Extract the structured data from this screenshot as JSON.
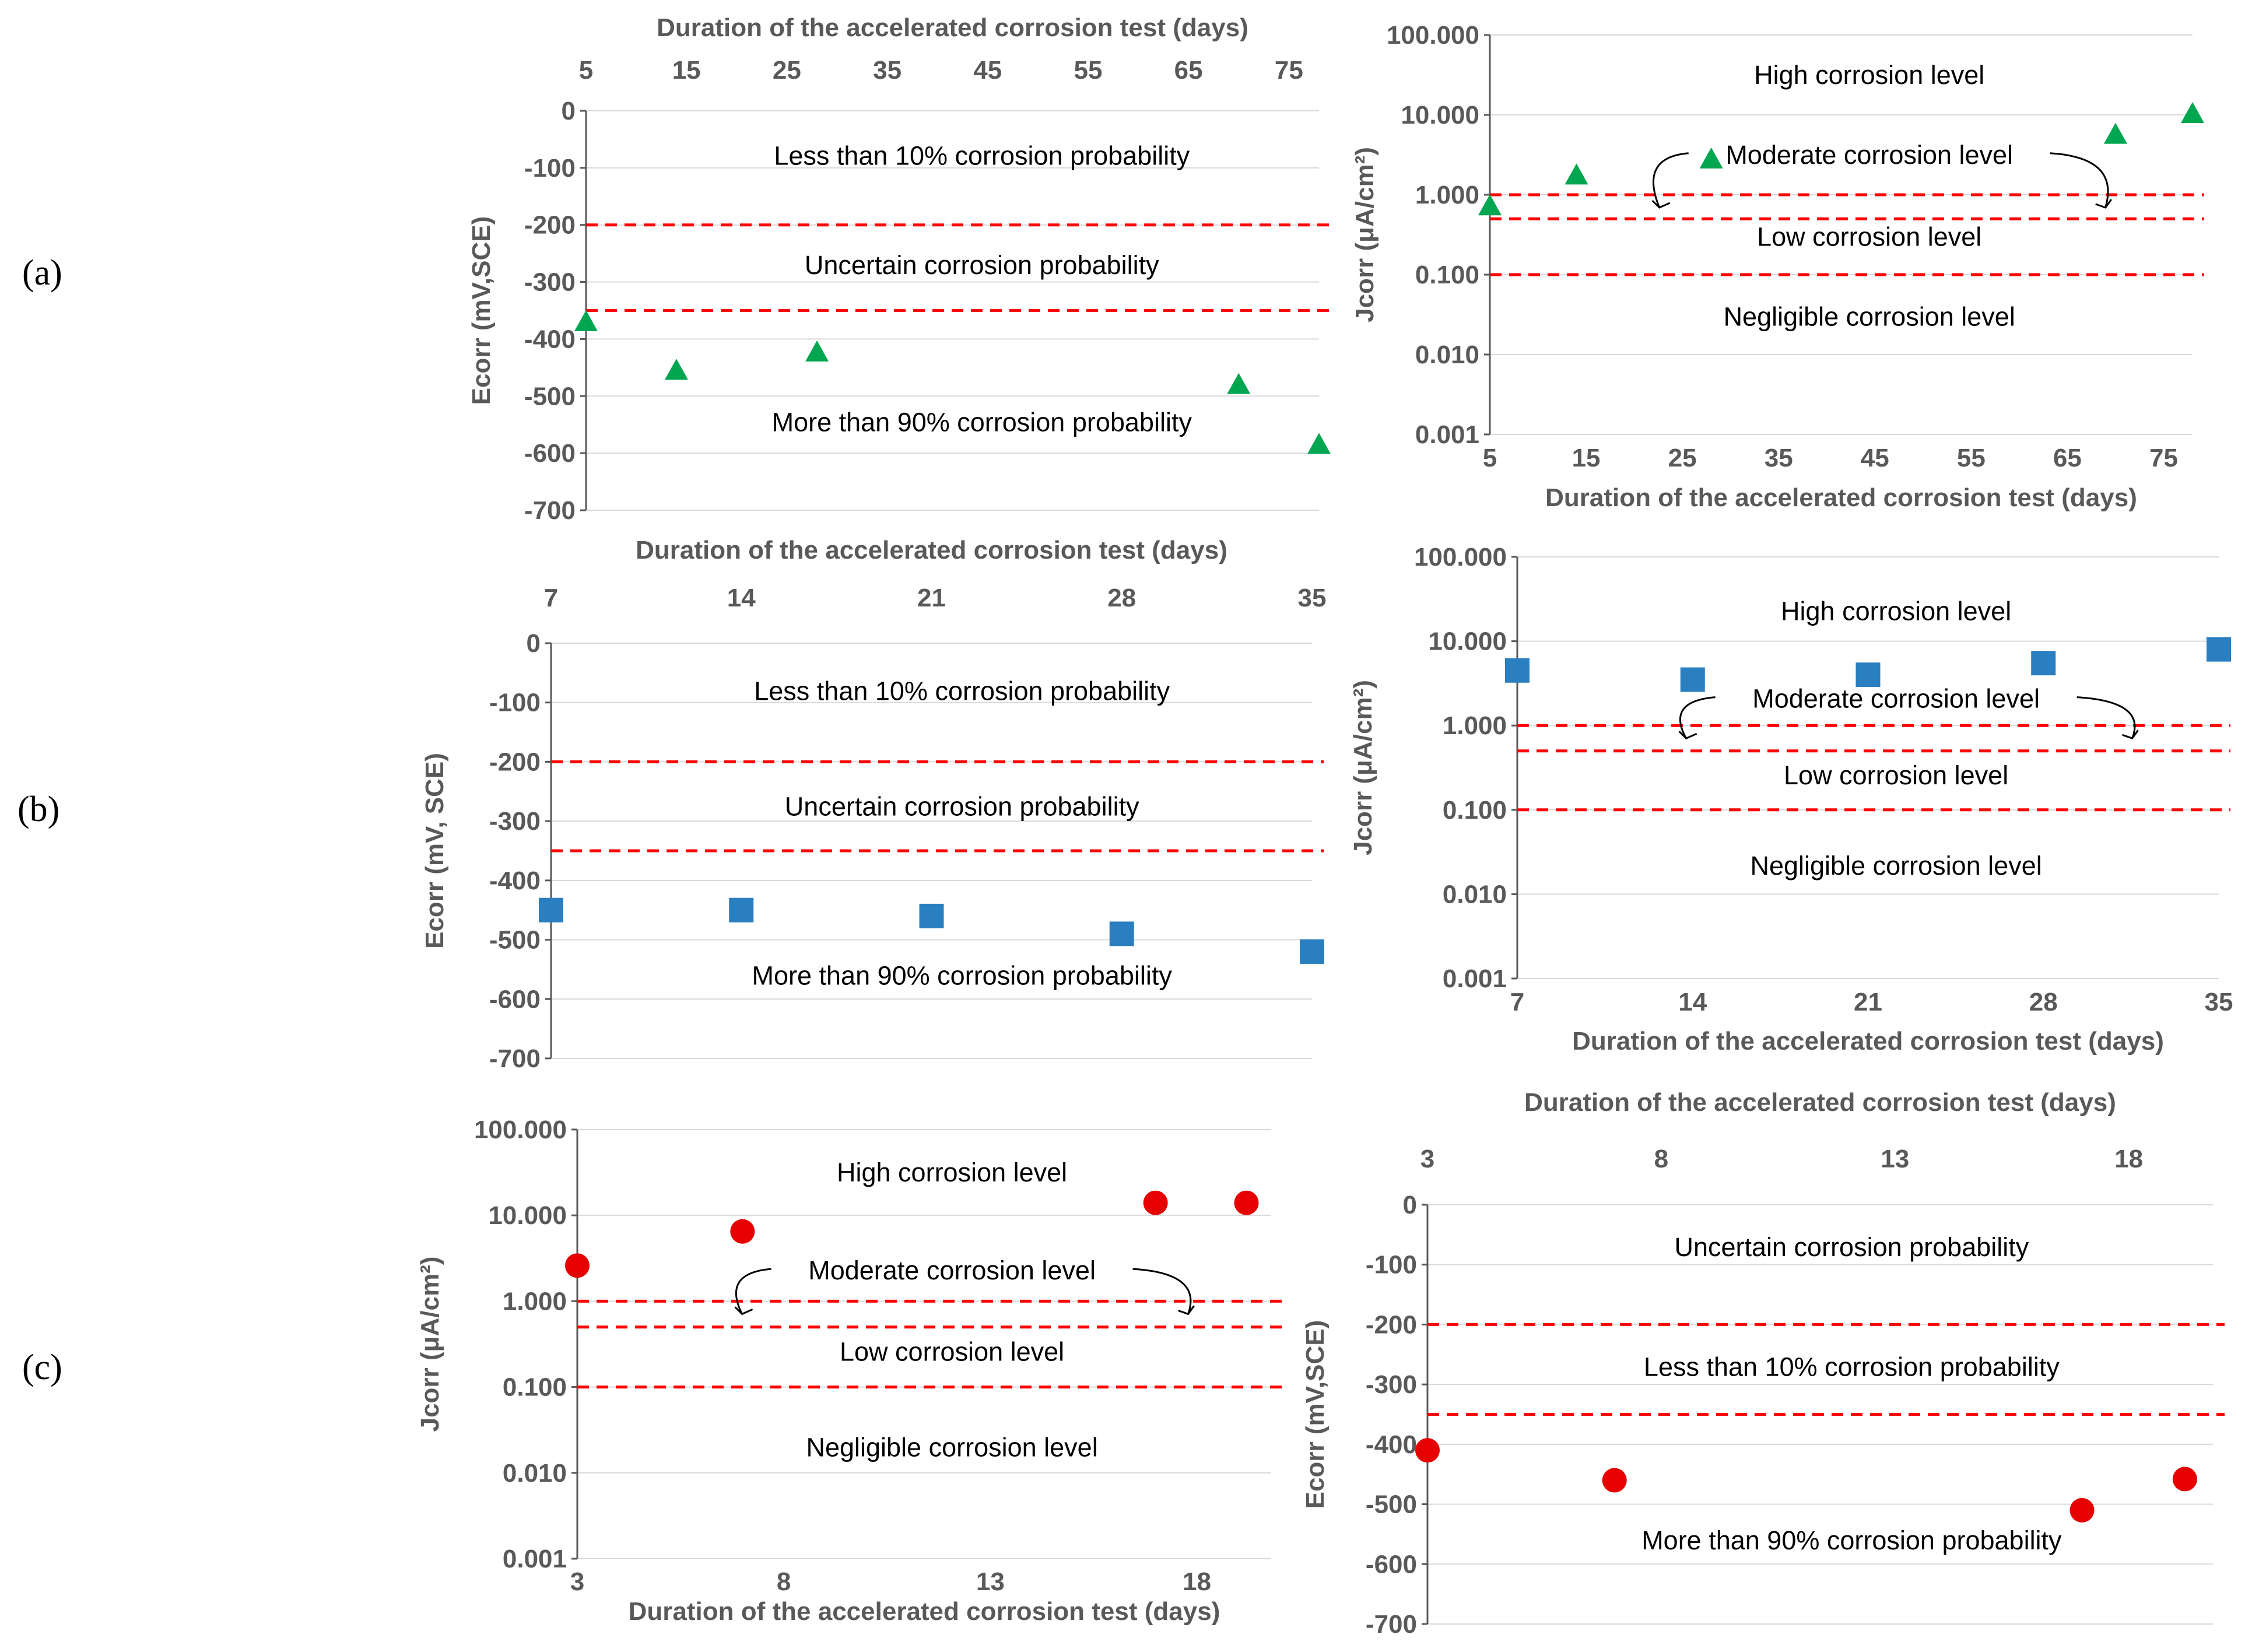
{
  "figure_labels": [
    "(a)",
    "(b)",
    "(c)"
  ],
  "colors": {
    "axis": "#595959",
    "gridline": "#d9d9d9",
    "threshold": "#ff0000",
    "series_a": "#00a650",
    "series_b": "#2a7fc1",
    "series_c": "#e60000"
  },
  "chart_data": [
    {
      "id": "a-ecorr",
      "panel": "(a)",
      "type": "scatter",
      "marker": "triangle",
      "xlabel": "Duration of the accelerated corrosion test (days)",
      "xlabel_position": "top",
      "ylabel": "Ecorr (mV,SCE)",
      "ylim": [
        -700,
        0
      ],
      "xlim": [
        5,
        78
      ],
      "x_ticks": [
        5,
        15,
        25,
        35,
        45,
        55,
        65,
        75
      ],
      "y_ticks": [
        0,
        -100,
        -200,
        -300,
        -400,
        -500,
        -600,
        -700
      ],
      "y_tick_labels": [
        "0",
        "-100",
        "-200",
        "-300",
        "-400",
        "-500",
        "-600",
        "-700"
      ],
      "series": [
        {
          "name": "Ecorr",
          "x": [
            5,
            14,
            28,
            70,
            78
          ],
          "y": [
            -372,
            -457,
            -425,
            -482,
            -587
          ]
        }
      ],
      "thresholds": [
        -200,
        -350
      ],
      "zones": [
        {
          "label": "Less than 10% corrosion probability",
          "y": -78
        },
        {
          "label": "Uncertain corrosion probability",
          "y": -270
        },
        {
          "label": "More than 90% corrosion probability",
          "y": -545
        }
      ]
    },
    {
      "id": "a-jcorr",
      "panel": "(a)",
      "type": "scatter",
      "marker": "triangle",
      "scale": "log",
      "xlabel": "Duration of the accelerated corrosion test (days)",
      "xlabel_position": "bottom",
      "ylabel": "Jcorr (μA/cm²)",
      "ylim": [
        0.001,
        100
      ],
      "xlim": [
        5,
        78
      ],
      "x_ticks": [
        5,
        15,
        25,
        35,
        45,
        55,
        65,
        75
      ],
      "y_ticks": [
        100,
        10,
        1,
        0.1,
        0.01,
        0.001
      ],
      "y_tick_labels": [
        "100.000",
        "10.000",
        "1.000",
        "0.100",
        "0.010",
        "0.001"
      ],
      "series": [
        {
          "name": "Jcorr",
          "x": [
            5,
            14,
            28,
            70,
            78
          ],
          "y": [
            0.7,
            1.7,
            2.7,
            5.5,
            10
          ]
        }
      ],
      "thresholds": [
        1,
        0.5,
        0.1
      ],
      "zones": [
        {
          "label": "High corrosion level",
          "y": 32
        },
        {
          "label": "Moderate corrosion level",
          "y": 3.2
        },
        {
          "label": "Low corrosion level",
          "y": 0.3
        },
        {
          "label": "Negligible corrosion level",
          "y": 0.03
        }
      ]
    },
    {
      "id": "b-ecorr",
      "panel": "(b)",
      "type": "scatter",
      "marker": "square",
      "xlabel": "Duration of the accelerated corrosion test (days)",
      "xlabel_position": "top",
      "ylabel": "Ecorr (mV, SCE)",
      "ylim": [
        -700,
        0
      ],
      "xlim": [
        7,
        35
      ],
      "x_ticks": [
        7,
        14,
        21,
        28,
        35
      ],
      "y_ticks": [
        0,
        -100,
        -200,
        -300,
        -400,
        -500,
        -600,
        -700
      ],
      "y_tick_labels": [
        "0",
        "-100",
        "-200",
        "-300",
        "-400",
        "-500",
        "-600",
        "-700"
      ],
      "series": [
        {
          "name": "Ecorr",
          "x": [
            7,
            14,
            21,
            28,
            35
          ],
          "y": [
            -450,
            -450,
            -460,
            -490,
            -520
          ]
        }
      ],
      "thresholds": [
        -200,
        -350
      ],
      "zones": [
        {
          "label": "Less than 10% corrosion probability",
          "y": -80
        },
        {
          "label": "Uncertain corrosion probability",
          "y": -275
        },
        {
          "label": "More than 90% corrosion probability",
          "y": -560
        }
      ]
    },
    {
      "id": "b-jcorr",
      "panel": "(b)",
      "type": "scatter",
      "marker": "square",
      "scale": "log",
      "xlabel": "Duration of the accelerated corrosion test (days)",
      "xlabel_position": "bottom",
      "ylabel": "Jcorr (μA/cm²)",
      "ylim": [
        0.001,
        100
      ],
      "xlim": [
        7,
        35
      ],
      "x_ticks": [
        7,
        14,
        21,
        28,
        35
      ],
      "y_ticks": [
        100,
        10,
        1,
        0.1,
        0.01,
        0.001
      ],
      "y_tick_labels": [
        "100.000",
        "10.000",
        "1.000",
        "0.100",
        "0.010",
        "0.001"
      ],
      "series": [
        {
          "name": "Jcorr",
          "x": [
            7,
            14,
            21,
            28,
            35
          ],
          "y": [
            4.5,
            3.5,
            4.0,
            5.5,
            8.0
          ]
        }
      ],
      "thresholds": [
        1,
        0.5,
        0.1
      ],
      "zones": [
        {
          "label": "High corrosion level",
          "y": 23
        },
        {
          "label": "Moderate corrosion level",
          "y": 2.1
        },
        {
          "label": "Low corrosion level",
          "y": 0.26
        },
        {
          "label": "Negligible corrosion level",
          "y": 0.022
        }
      ]
    },
    {
      "id": "c-jcorr",
      "panel": "(c)",
      "type": "scatter",
      "marker": "circle",
      "scale": "log",
      "xlabel": "Duration of the accelerated corrosion test (days)",
      "xlabel_position": "bottom",
      "ylabel": "Jcorr (μA/cm²)",
      "ylim": [
        0.001,
        100
      ],
      "xlim": [
        3,
        19.8
      ],
      "x_ticks": [
        3,
        8,
        13,
        18
      ],
      "y_ticks": [
        100,
        10,
        1,
        0.1,
        0.01,
        0.001
      ],
      "y_tick_labels": [
        "100.000",
        "10.000",
        "1.000",
        "0.100",
        "0.010",
        "0.001"
      ],
      "series": [
        {
          "name": "Jcorr",
          "x": [
            3,
            7,
            17,
            19.2
          ],
          "y": [
            2.6,
            6.5,
            14,
            14
          ]
        }
      ],
      "thresholds": [
        1,
        0.5,
        0.1
      ],
      "zones": [
        {
          "label": "High corrosion level",
          "y": 32
        },
        {
          "label": "Moderate corrosion level",
          "y": 2.3
        },
        {
          "label": "Low corrosion level",
          "y": 0.26
        },
        {
          "label": "Negligible corrosion level",
          "y": 0.02
        }
      ]
    },
    {
      "id": "c-ecorr",
      "panel": "(c)",
      "type": "scatter",
      "marker": "circle",
      "xlabel": "Duration of the accelerated corrosion test (days)",
      "xlabel_position": "top",
      "ylabel": "Ecorr (mV,SCE)",
      "ylim": [
        -700,
        0
      ],
      "xlim": [
        3,
        19.8
      ],
      "x_ticks": [
        3,
        8,
        13,
        18
      ],
      "y_ticks": [
        0,
        -100,
        -200,
        -300,
        -400,
        -500,
        -600,
        -700
      ],
      "y_tick_labels": [
        "0",
        "-100",
        "-200",
        "-300",
        "-400",
        "-500",
        "-600",
        "-700"
      ],
      "series": [
        {
          "name": "Ecorr",
          "x": [
            3,
            7,
            17,
            19.2
          ],
          "y": [
            -410,
            -460,
            -510,
            -458
          ]
        }
      ],
      "thresholds": [
        -200,
        -350
      ],
      "zones": [
        {
          "label": "Uncertain corrosion probability",
          "y": -70
        },
        {
          "label": "Less than 10% corrosion probability",
          "y": -270
        },
        {
          "label": "More than 90% corrosion probability",
          "y": -560
        }
      ]
    }
  ]
}
